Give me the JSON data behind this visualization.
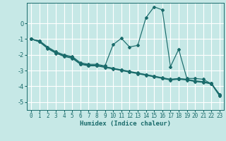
{
  "xlabel": "Humidex (Indice chaleur)",
  "xlim": [
    -0.5,
    23.5
  ],
  "ylim": [
    -5.5,
    1.3
  ],
  "yticks": [
    0,
    -1,
    -2,
    -3,
    -4,
    -5
  ],
  "xticks": [
    0,
    1,
    2,
    3,
    4,
    5,
    6,
    7,
    8,
    9,
    10,
    11,
    12,
    13,
    14,
    15,
    16,
    17,
    18,
    19,
    20,
    21,
    22,
    23
  ],
  "bg_color": "#c6e8e6",
  "grid_color": "#ffffff",
  "line_color": "#1a6b6b",
  "line1_y": [
    -1.0,
    -1.1,
    -1.5,
    -1.8,
    -2.0,
    -2.1,
    -2.5,
    -2.6,
    -2.6,
    -2.7,
    -1.35,
    -0.95,
    -1.5,
    -1.4,
    0.35,
    1.05,
    0.85,
    -2.75,
    -1.65,
    -3.5,
    -3.5,
    -3.55,
    -3.85,
    -4.5
  ],
  "line2_y": [
    -1.0,
    -1.15,
    -1.57,
    -1.87,
    -2.07,
    -2.18,
    -2.57,
    -2.67,
    -2.67,
    -2.77,
    -2.87,
    -2.97,
    -3.07,
    -3.17,
    -3.27,
    -3.37,
    -3.47,
    -3.57,
    -3.52,
    -3.57,
    -3.67,
    -3.72,
    -3.82,
    -4.57
  ],
  "line3_y": [
    -1.0,
    -1.18,
    -1.6,
    -1.9,
    -2.1,
    -2.22,
    -2.6,
    -2.7,
    -2.7,
    -2.8,
    -2.9,
    -3.0,
    -3.1,
    -3.2,
    -3.3,
    -3.4,
    -3.5,
    -3.6,
    -3.55,
    -3.6,
    -3.7,
    -3.75,
    -3.85,
    -4.62
  ],
  "line4_y": [
    -1.0,
    -1.13,
    -1.55,
    -1.85,
    -2.05,
    -2.16,
    -2.55,
    -2.65,
    -2.65,
    -2.75,
    -2.85,
    -2.95,
    -3.05,
    -3.15,
    -3.25,
    -3.35,
    -3.45,
    -3.55,
    -3.5,
    -3.55,
    -3.65,
    -3.7,
    -3.8,
    -4.55
  ]
}
